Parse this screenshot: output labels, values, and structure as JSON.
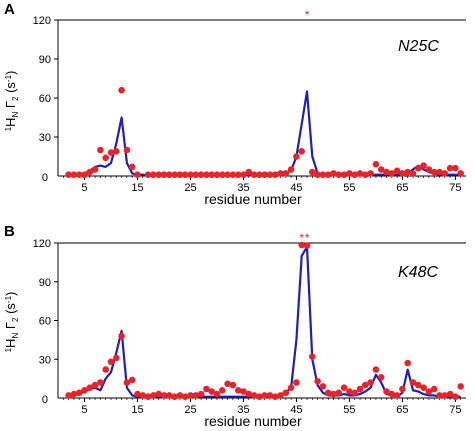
{
  "figure": {
    "colors": {
      "points": "#e8232a",
      "line": "#1f1fb5",
      "axis": "#000000"
    },
    "shared_ylabel": {
      "prefix_sup": "1",
      "main": "H",
      "main_sub": "N",
      "gamma": "Γ",
      "gamma_sub": "2",
      "unit": " (s",
      "unit_sup": "-1",
      "unit_close": ")"
    }
  },
  "chart_data": [
    {
      "type": "scatter",
      "panel": "A",
      "mutant": "N25C",
      "xlabel": "residue number",
      "xlim": [
        0,
        77
      ],
      "ylim": [
        0,
        120
      ],
      "xticks": [
        0,
        5,
        15,
        25,
        35,
        45,
        55,
        65,
        75
      ],
      "yticks": [
        30,
        60,
        90,
        120
      ],
      "star_residues": [
        47
      ],
      "series": [
        {
          "kind": "line",
          "x": [
            2,
            3,
            4,
            5,
            6,
            7,
            8,
            9,
            10,
            11,
            12,
            13,
            14,
            15,
            16,
            17,
            18,
            19,
            20,
            21,
            22,
            23,
            24,
            25,
            26,
            27,
            28,
            29,
            30,
            31,
            32,
            33,
            34,
            35,
            36,
            37,
            38,
            39,
            40,
            41,
            42,
            43,
            44,
            45,
            46,
            47,
            48,
            49,
            50,
            51,
            52,
            53,
            54,
            55,
            56,
            57,
            58,
            59,
            60,
            61,
            62,
            63,
            64,
            65,
            66,
            67,
            68,
            69,
            70,
            71,
            72,
            73,
            74,
            75,
            76
          ],
          "y": [
            0,
            0.5,
            1,
            2,
            4,
            7,
            8,
            7,
            10,
            25,
            45,
            10,
            2,
            1,
            1,
            0.5,
            0.5,
            0.5,
            0.5,
            0.5,
            0.5,
            0.5,
            0.5,
            0.5,
            0.5,
            0.5,
            0.5,
            0.5,
            0.5,
            0.5,
            0.5,
            0.5,
            0.5,
            0.5,
            0.5,
            0.5,
            0.5,
            0.5,
            0.5,
            0.5,
            1,
            2,
            4,
            15,
            40,
            65,
            15,
            2,
            1,
            0.5,
            0.5,
            0.5,
            0.5,
            0.5,
            0.5,
            0.5,
            0.5,
            0.5,
            1,
            1,
            1,
            1,
            1,
            1,
            2,
            5,
            8,
            5,
            3,
            2,
            1,
            1,
            1,
            1,
            1
          ]
        },
        {
          "kind": "points",
          "x": [
            2,
            3,
            4,
            5,
            6,
            7,
            8,
            9,
            10,
            11,
            12,
            13,
            14,
            15,
            17,
            18,
            19,
            20,
            21,
            22,
            23,
            24,
            25,
            26,
            27,
            28,
            29,
            30,
            31,
            32,
            33,
            34,
            35,
            36,
            37,
            38,
            39,
            40,
            41,
            42,
            43,
            44,
            45,
            46,
            48,
            49,
            50,
            51,
            52,
            53,
            54,
            55,
            56,
            57,
            58,
            59,
            60,
            61,
            62,
            63,
            64,
            65,
            66,
            67,
            68,
            69,
            70,
            71,
            72,
            73,
            74,
            75,
            76
          ],
          "y": [
            1,
            1,
            1,
            1,
            3,
            5,
            20,
            14,
            18,
            19,
            66,
            20,
            7,
            1,
            1,
            1,
            1,
            1,
            1,
            1,
            1,
            1,
            1,
            1,
            1,
            1,
            1,
            1,
            1,
            1,
            1,
            1,
            1,
            3,
            1,
            1,
            1,
            1,
            1,
            2,
            2,
            5,
            15,
            19,
            3,
            1,
            1,
            1,
            2,
            1,
            1,
            2,
            1,
            2,
            1,
            2,
            9,
            5,
            3,
            2,
            4,
            2,
            3,
            2,
            6,
            8,
            5,
            3,
            3,
            2,
            6,
            6,
            2
          ]
        }
      ]
    },
    {
      "type": "scatter",
      "panel": "B",
      "mutant": "K48C",
      "xlabel": "residue number",
      "xlim": [
        0,
        77
      ],
      "ylim": [
        0,
        120
      ],
      "xticks": [
        0,
        5,
        15,
        25,
        35,
        45,
        55,
        65,
        75
      ],
      "yticks": [
        30,
        60,
        90,
        120
      ],
      "star_residues": [
        46,
        47
      ],
      "series": [
        {
          "kind": "line",
          "x": [
            2,
            3,
            4,
            5,
            6,
            7,
            8,
            9,
            10,
            11,
            12,
            13,
            14,
            15,
            16,
            17,
            18,
            19,
            20,
            21,
            22,
            23,
            24,
            25,
            26,
            27,
            28,
            29,
            30,
            31,
            32,
            33,
            34,
            35,
            36,
            37,
            38,
            39,
            40,
            41,
            42,
            43,
            44,
            45,
            46,
            47,
            48,
            49,
            50,
            51,
            52,
            53,
            54,
            55,
            56,
            57,
            58,
            59,
            60,
            61,
            62,
            63,
            64,
            65,
            66,
            67,
            68,
            69,
            70,
            71,
            72,
            73,
            74,
            75,
            76
          ],
          "y": [
            1,
            2,
            3,
            5,
            7,
            8,
            6,
            15,
            20,
            35,
            52,
            8,
            2,
            1,
            1,
            1,
            1,
            1,
            1,
            1,
            1,
            1,
            1,
            1,
            1,
            1,
            1,
            1,
            1,
            1,
            1,
            1,
            1,
            1,
            1,
            1,
            1,
            1,
            1,
            1,
            2,
            4,
            8,
            45,
            110,
            117,
            30,
            10,
            4,
            2,
            2,
            2,
            3,
            2,
            2,
            3,
            5,
            8,
            18,
            12,
            3,
            2,
            1,
            4,
            22,
            6,
            5,
            3,
            2,
            2,
            1,
            1,
            1,
            1,
            1
          ]
        },
        {
          "kind": "points",
          "x": [
            2,
            3,
            4,
            5,
            6,
            7,
            8,
            9,
            10,
            11,
            12,
            13,
            14,
            15,
            16,
            17,
            18,
            19,
            20,
            21,
            22,
            23,
            24,
            25,
            26,
            27,
            28,
            29,
            30,
            31,
            32,
            33,
            34,
            35,
            36,
            37,
            38,
            39,
            40,
            41,
            42,
            43,
            44,
            45,
            46,
            47,
            48,
            49,
            50,
            51,
            52,
            53,
            54,
            55,
            56,
            57,
            58,
            59,
            60,
            61,
            62,
            63,
            64,
            65,
            66,
            67,
            68,
            69,
            70,
            71,
            72,
            73,
            74,
            75,
            76
          ],
          "y": [
            2,
            3,
            4,
            6,
            8,
            10,
            12,
            22,
            28,
            31,
            48,
            12,
            14,
            3,
            2,
            1,
            2,
            3,
            2,
            2,
            1,
            2,
            1,
            2,
            2,
            3,
            7,
            5,
            3,
            6,
            11,
            10,
            6,
            5,
            3,
            2,
            1,
            2,
            2,
            1,
            2,
            4,
            8,
            12,
            120,
            118,
            32,
            13,
            9,
            4,
            3,
            4,
            8,
            5,
            4,
            7,
            10,
            12,
            22,
            16,
            5,
            3,
            2,
            7,
            27,
            12,
            10,
            8,
            5,
            7,
            2,
            2,
            3,
            1,
            9
          ]
        }
      ]
    }
  ]
}
